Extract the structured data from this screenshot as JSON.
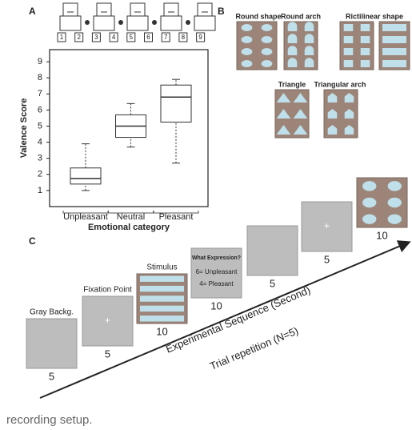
{
  "panels": {
    "a": "A",
    "b": "B",
    "c": "C"
  },
  "sam_scale": [
    1,
    2,
    3,
    4,
    5,
    6,
    7,
    8,
    9
  ],
  "chart_data": {
    "type": "box",
    "categories": [
      "Unpleasant",
      "Neutral",
      "Pleasant"
    ],
    "min": [
      1.0,
      3.7,
      2.7
    ],
    "q1": [
      1.4,
      4.3,
      5.25
    ],
    "median": [
      1.75,
      5.0,
      6.8
    ],
    "q3": [
      2.4,
      5.7,
      7.55
    ],
    "max": [
      3.9,
      6.4,
      7.9
    ],
    "ylim": [
      0,
      9.75
    ],
    "yticks": [
      1,
      2,
      3,
      4,
      5,
      6,
      7,
      8,
      9
    ],
    "ylabel": "Valence Score",
    "xlabel": "Emotional category",
    "color": "#333333"
  },
  "stimuli": {
    "labels": [
      "Round shape",
      "Round arch",
      "Rictilinear shape",
      "Triangle",
      "Triangular arch"
    ]
  },
  "sequence": {
    "steps": [
      {
        "label": "Gray Backg.",
        "duration": 5
      },
      {
        "label": "Fixation Point",
        "duration": 5
      },
      {
        "label": "Stimulus",
        "duration": 10
      },
      {
        "question": "What Expression?",
        "options": [
          "6= Unpleasant",
          "4= Pleasant"
        ],
        "duration": 10
      },
      {
        "duration": 5
      },
      {
        "duration": 5
      },
      {
        "duration": 10
      }
    ],
    "axis_label": "Experimental Sequence (Second)",
    "repetition": "Trial repetition (N=5)"
  },
  "caption": "recording setup."
}
